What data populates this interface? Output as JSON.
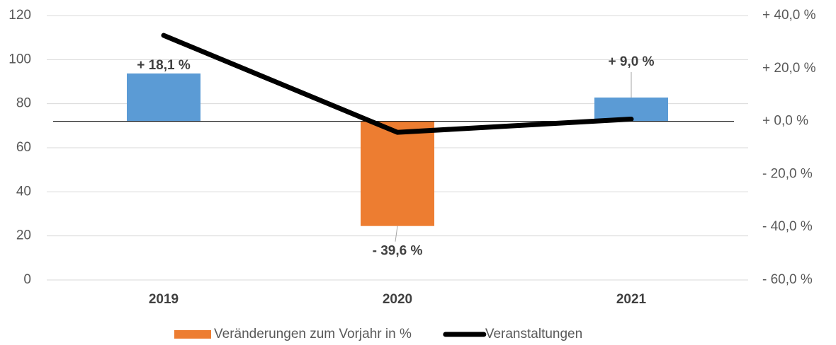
{
  "chart_data": {
    "type": "bar",
    "categories": [
      "2019",
      "2020",
      "2021"
    ],
    "series": [
      {
        "name": "Veränderungen zum Vorjahr in %",
        "type": "bar",
        "axis": "y2",
        "color": "#ed7d31",
        "point_colors": [
          "#5b9bd5",
          "#ed7d31",
          "#5b9bd5"
        ],
        "values": [
          18.1,
          -39.6,
          9.0
        ],
        "value_labels": [
          "+ 18,1 %",
          "- 39,6 %",
          "+ 9,0 %"
        ]
      },
      {
        "name": "Veranstaltungen",
        "type": "line",
        "axis": "y",
        "color": "#000000",
        "values": [
          111,
          67,
          73
        ]
      }
    ],
    "ylim": [
      0,
      120
    ],
    "yticks": [
      0,
      20,
      40,
      60,
      80,
      100,
      120
    ],
    "y2lim": [
      -60,
      40
    ],
    "y2ticks": [
      {
        "value": -60,
        "label": "- 60,0 %"
      },
      {
        "value": -40,
        "label": "- 40,0 %"
      },
      {
        "value": -20,
        "label": "- 20,0 %"
      },
      {
        "value": 0,
        "label": "+ 0,0 %"
      },
      {
        "value": 20,
        "label": "+ 20,0 %"
      },
      {
        "value": 40,
        "label": "+ 40,0 %"
      }
    ],
    "grid": true,
    "legend": "bottom"
  }
}
